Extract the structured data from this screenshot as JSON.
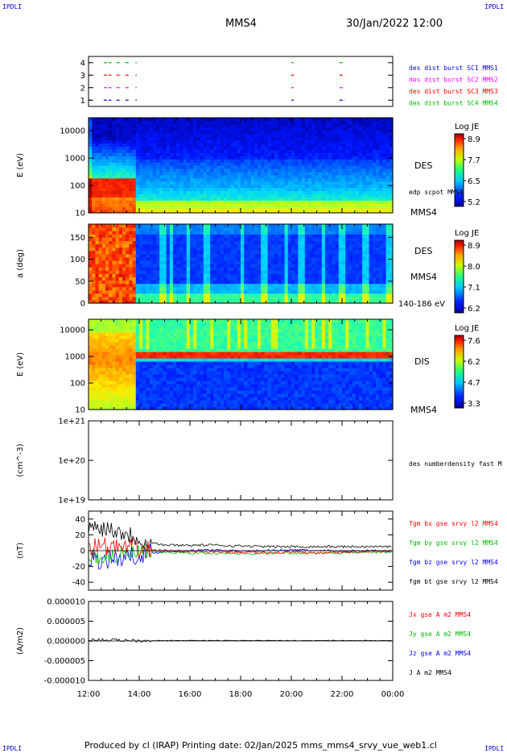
{
  "corners": {
    "tl": "IPDLI",
    "tr": "IPDLI",
    "bl": "IPDLI",
    "br": "IPDLI"
  },
  "header": {
    "spacecraft": "MMS4",
    "datetime": "30/Jan/2022 12:00"
  },
  "footer": "Produced by cl (IRAP)   Printing date: 02/Jan/2025   mms_mms4_srvy_vue_web1.cl",
  "time_axis": {
    "start": "12:00",
    "end": "00:00",
    "ticks": [
      "12:00",
      "14:00",
      "16:00",
      "18:00",
      "20:00",
      "22:00",
      "00:00"
    ]
  },
  "colors": {
    "black": "#000000",
    "red": "#ff0000",
    "green": "#00bb00",
    "blue": "#0000ff",
    "magenta": "#ff00ff"
  },
  "chart_data": [
    {
      "type": "scatter",
      "panel": "burst availability",
      "ylim": [
        0.5,
        4.5
      ],
      "yticks": [
        "1",
        "2",
        "3",
        "4"
      ],
      "legend": [
        {
          "label": "des dist burst SC1 MMS1",
          "color": "#0000cc"
        },
        {
          "label": "des dist burst SC2 MMS2",
          "color": "#ff00ff"
        },
        {
          "label": "des dist burst SC3 MMS3",
          "color": "#ff0000"
        },
        {
          "label": "des dist burst SC4 MMS4",
          "color": "#00bb00"
        }
      ],
      "intervals_hours": [
        [
          0.0,
          0.1
        ],
        [
          0.6,
          0.9
        ],
        [
          1.1,
          1.3
        ],
        [
          1.45,
          1.6
        ],
        [
          1.85,
          1.9
        ],
        [
          8.0,
          8.1
        ],
        [
          9.9,
          10.1
        ]
      ]
    },
    {
      "type": "heatmap",
      "panel": "DES energy spectrogram",
      "ylabel": "E (eV)",
      "yscale": "log",
      "ylim": [
        10,
        30000
      ],
      "yticks": [
        "10",
        "100",
        "1000",
        "10000"
      ],
      "label": "DES",
      "sc_label": "MMS4",
      "overlay_label": "edp scpot MMS4",
      "colorbar": {
        "title": "Log JE",
        "ticks": [
          "8.9",
          "7.7",
          "6.5",
          "5.2"
        ]
      }
    },
    {
      "type": "heatmap",
      "panel": "DES pitch angle",
      "ylabel": "a (deg)",
      "ylim": [
        0,
        180
      ],
      "yticks": [
        "0",
        "50",
        "100",
        "150"
      ],
      "label": "DES",
      "sc_label": "MMS4",
      "range_label": "140-186 eV",
      "colorbar": {
        "title": "Log JE",
        "ticks": [
          "8.9",
          "8.0",
          "7.1",
          "6.2"
        ]
      }
    },
    {
      "type": "heatmap",
      "panel": "DIS energy spectrogram",
      "ylabel": "E (eV)",
      "yscale": "log",
      "ylim": [
        10,
        25000
      ],
      "yticks": [
        "10",
        "100",
        "1000",
        "10000"
      ],
      "label": "DIS",
      "sc_label": "MMS4",
      "colorbar": {
        "title": "Log JE",
        "ticks": [
          "7.6",
          "6.2",
          "4.7",
          "3.3"
        ]
      }
    },
    {
      "type": "line",
      "panel": "number density",
      "ylabel": "(cm^-3)",
      "yscale": "log",
      "ylim": [
        1e+19,
        1e+21
      ],
      "yticks": [
        "1e+19",
        "1e+20",
        "1e+21"
      ],
      "legend": [
        {
          "label": "des numberdensity fast M",
          "color": "#000000"
        }
      ],
      "series": []
    },
    {
      "type": "line",
      "panel": "magnetic field",
      "ylabel": "(nT)",
      "ylim": [
        -50,
        50
      ],
      "yticks": [
        "40",
        "20",
        "0",
        "-20",
        "-40"
      ],
      "legend": [
        {
          "label": "fgm bx gse srvy l2 MMS4",
          "color": "#ff0000"
        },
        {
          "label": "fgm by gse srvy l2 MMS4",
          "color": "#00bb00"
        },
        {
          "label": "fgm bz gse srvy l2 MMS4",
          "color": "#0000ff"
        },
        {
          "label": "fgm bt gse srvy l2 MMS4",
          "color": "#000000"
        }
      ],
      "series": [
        {
          "name": "fgm bt gse srvy l2 MMS4",
          "x": [
            0,
            0.5,
            1.0,
            1.5,
            2.0,
            2.5,
            3,
            4,
            5,
            6,
            7,
            8,
            9,
            10,
            11,
            12
          ],
          "values": [
            28,
            30,
            27,
            22,
            15,
            10,
            7,
            7,
            7,
            6,
            5,
            5,
            5,
            5,
            5,
            5
          ]
        },
        {
          "name": "fgm bz gse srvy l2 MMS4",
          "x": [
            0,
            0.5,
            1.0,
            1.5,
            2.0,
            2.5,
            3,
            4,
            5,
            6,
            7,
            8,
            9,
            10,
            11,
            12
          ],
          "values": [
            -10,
            -12,
            -10,
            -8,
            -4,
            -3,
            -1,
            0,
            1,
            -1,
            0,
            1,
            0,
            -1,
            0,
            -1
          ]
        },
        {
          "name": "fgm by gse srvy l2 MMS4",
          "x": [
            0,
            0.5,
            1.0,
            1.5,
            2.0,
            2.5,
            3,
            4,
            5,
            6,
            7,
            8,
            9,
            10,
            11,
            12
          ],
          "values": [
            -5,
            -8,
            -6,
            -5,
            -3,
            -2,
            -2,
            -3,
            -3,
            -4,
            -3,
            -3,
            -3,
            -3,
            -2,
            -2
          ]
        },
        {
          "name": "fgm bx gse srvy l2 MMS4",
          "x": [
            0,
            0.5,
            1.0,
            1.5,
            2.0,
            2.5,
            3,
            4,
            5,
            6,
            7,
            8,
            9,
            10,
            11,
            12
          ],
          "values": [
            5,
            6,
            4,
            3,
            2,
            1,
            0,
            -1,
            -2,
            -2,
            -3,
            -2,
            -3,
            -2,
            -1,
            -1
          ]
        }
      ]
    },
    {
      "type": "line",
      "panel": "current density",
      "ylabel": "(A/m2)",
      "ylim": [
        -1e-05,
        1e-05
      ],
      "yticks": [
        "0.000010",
        "0.000005",
        "0.000000",
        "-0.000005",
        "-0.000010"
      ],
      "legend": [
        {
          "label": "Jx gse A m2 MMS4",
          "color": "#ff0000"
        },
        {
          "label": "Jy gse A m2 MMS4",
          "color": "#00bb00"
        },
        {
          "label": "Jz gse A m2 MMS4",
          "color": "#0000ff"
        },
        {
          "label": "J A m2 MMS4",
          "color": "#000000"
        }
      ],
      "series": [
        {
          "name": "J A m2 MMS4",
          "x": [
            0,
            0.5,
            1.0,
            1.5,
            2.0,
            2.5,
            3,
            6,
            9,
            12
          ],
          "values": [
            2e-07,
            3e-07,
            2e-07,
            2e-07,
            1e-07,
            1e-07,
            1e-07,
            1e-07,
            1e-07,
            1e-07
          ]
        }
      ]
    }
  ]
}
